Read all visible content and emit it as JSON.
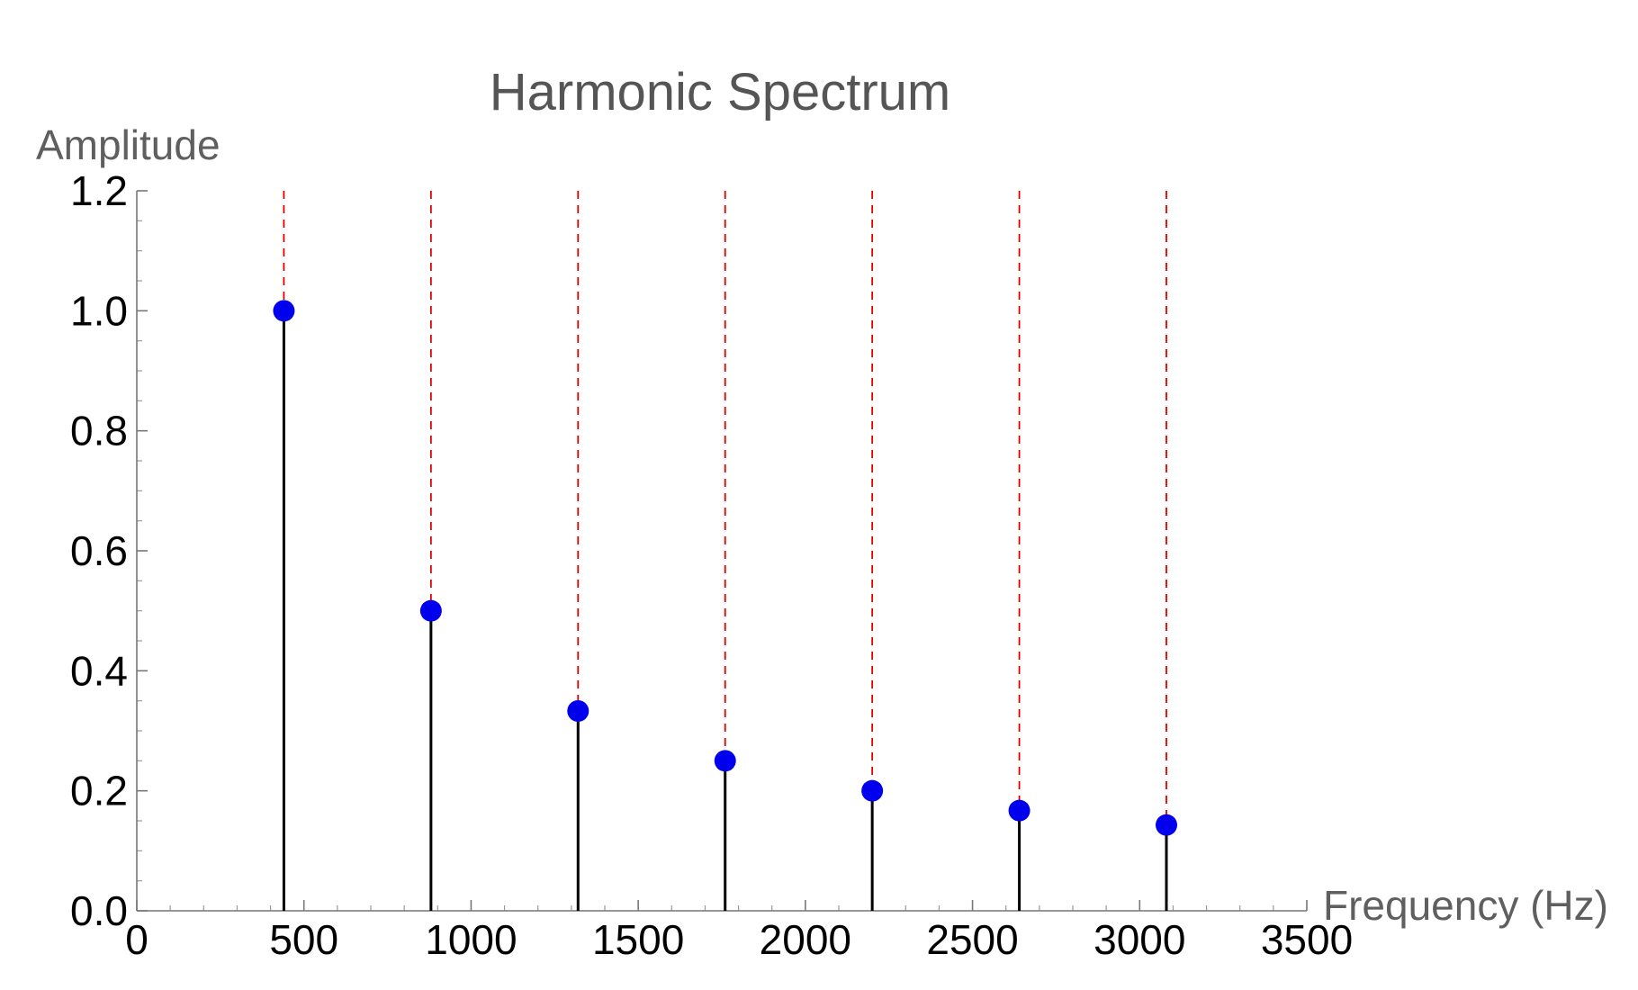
{
  "chart_data": {
    "type": "scatter",
    "title": "Harmonic Spectrum",
    "xlabel": "Frequency (Hz)",
    "ylabel": "Amplitude",
    "xlim": [
      0,
      3500
    ],
    "ylim": [
      0,
      1.2
    ],
    "x_ticks": [
      "0",
      "500",
      "1000",
      "1500",
      "2000",
      "2500",
      "3000",
      "3500"
    ],
    "y_ticks": [
      "0.0",
      "0.2",
      "0.4",
      "0.6",
      "0.8",
      "1.0",
      "1.2"
    ],
    "x": [
      440,
      880,
      1320,
      1760,
      2200,
      2640,
      3080
    ],
    "values": [
      1.0,
      0.5,
      0.333,
      0.25,
      0.2,
      0.167,
      0.143
    ],
    "style": {
      "marker_color": "#0000ee",
      "stem_color": "#000000",
      "guide_color": "#e00000",
      "guide_dash": "dashed",
      "grid": false,
      "legend": "none"
    }
  }
}
